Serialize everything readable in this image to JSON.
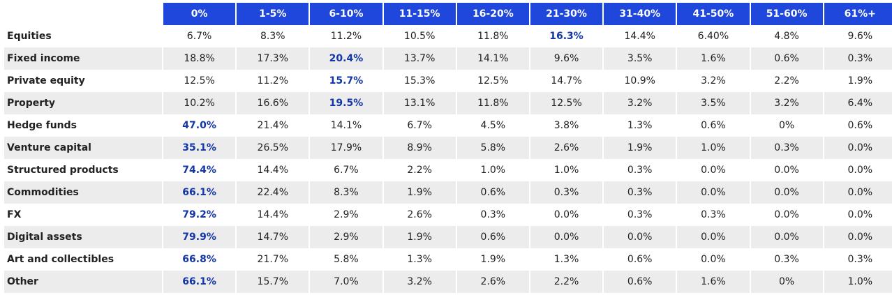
{
  "chart_data": {
    "type": "table",
    "columns": [
      "0%",
      "1-5%",
      "6-10%",
      "11-15%",
      "16-20%",
      "21-30%",
      "31-40%",
      "41-50%",
      "51-60%",
      "61%+"
    ],
    "rows": [
      {
        "label": "Equities",
        "values": [
          "6.7%",
          "8.3%",
          "11.2%",
          "10.5%",
          "11.8%",
          "16.3%",
          "14.4%",
          "6.40%",
          "4.8%",
          "9.6%"
        ],
        "highlight_index": 5
      },
      {
        "label": "Fixed income",
        "values": [
          "18.8%",
          "17.3%",
          "20.4%",
          "13.7%",
          "14.1%",
          "9.6%",
          "3.5%",
          "1.6%",
          "0.6%",
          "0.3%"
        ],
        "highlight_index": 2
      },
      {
        "label": "Private equity",
        "values": [
          "12.5%",
          "11.2%",
          "15.7%",
          "15.3%",
          "12.5%",
          "14.7%",
          "10.9%",
          "3.2%",
          "2.2%",
          "1.9%"
        ],
        "highlight_index": 2
      },
      {
        "label": "Property",
        "values": [
          "10.2%",
          "16.6%",
          "19.5%",
          "13.1%",
          "11.8%",
          "12.5%",
          "3.2%",
          "3.5%",
          "3.2%",
          "6.4%"
        ],
        "highlight_index": 2
      },
      {
        "label": "Hedge funds",
        "values": [
          "47.0%",
          "21.4%",
          "14.1%",
          "6.7%",
          "4.5%",
          "3.8%",
          "1.3%",
          "0.6%",
          "0%",
          "0.6%"
        ],
        "highlight_index": 0
      },
      {
        "label": "Venture capital",
        "values": [
          "35.1%",
          "26.5%",
          "17.9%",
          "8.9%",
          "5.8%",
          "2.6%",
          "1.9%",
          "1.0%",
          "0.3%",
          "0.0%"
        ],
        "highlight_index": 0
      },
      {
        "label": "Structured products",
        "values": [
          "74.4%",
          "14.4%",
          "6.7%",
          "2.2%",
          "1.0%",
          "1.0%",
          "0.3%",
          "0.0%",
          "0.0%",
          "0.0%"
        ],
        "highlight_index": 0
      },
      {
        "label": "Commodities",
        "values": [
          "66.1%",
          "22.4%",
          "8.3%",
          "1.9%",
          "0.6%",
          "0.3%",
          "0.3%",
          "0.0%",
          "0.0%",
          "0.0%"
        ],
        "highlight_index": 0
      },
      {
        "label": "FX",
        "values": [
          "79.2%",
          "14.4%",
          "2.9%",
          "2.6%",
          "0.3%",
          "0.0%",
          "0.3%",
          "0.3%",
          "0.0%",
          "0.0%"
        ],
        "highlight_index": 0
      },
      {
        "label": "Digital assets",
        "values": [
          "79.9%",
          "14.7%",
          "2.9%",
          "1.9%",
          "0.6%",
          "0.0%",
          "0.0%",
          "0.0%",
          "0.0%",
          "0.0%"
        ],
        "highlight_index": 0
      },
      {
        "label": "Art and collectibles",
        "values": [
          "66.8%",
          "21.7%",
          "5.8%",
          "1.3%",
          "1.9%",
          "1.3%",
          "0.6%",
          "0.0%",
          "0.3%",
          "0.3%"
        ],
        "highlight_index": 0
      },
      {
        "label": "Other",
        "values": [
          "66.1%",
          "15.7%",
          "7.0%",
          "3.2%",
          "2.6%",
          "2.2%",
          "0.6%",
          "1.6%",
          "0%",
          "1.0%"
        ],
        "highlight_index": 0
      }
    ]
  },
  "colors": {
    "header_bg": "#1f47dc",
    "header_text": "#ffffff",
    "highlight_text": "#1236a8",
    "stripe_bg": "#ececec"
  }
}
